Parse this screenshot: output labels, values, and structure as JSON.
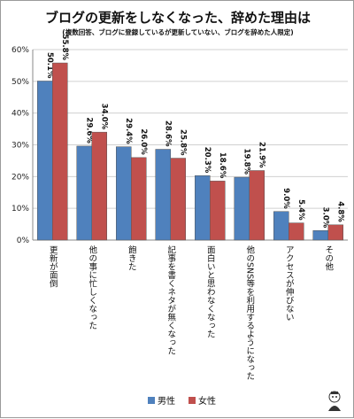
{
  "chart_data": {
    "type": "bar",
    "title": "ブログの更新をしなくなった、辞めた理由は",
    "subtitle": "(複数回答、ブログに登録しているが更新していない、ブログを辞めた人限定)",
    "categories": [
      "更新が面倒",
      "他の事に忙しくなった",
      "飽きた",
      "記事を書くネタが無くなった",
      "面白いと思わなくなった",
      "他のSNS等を利用するようになった",
      "アクセスが伸びない",
      "その他"
    ],
    "series": [
      {
        "name": "男性",
        "color": "#4f81bd",
        "values": [
          50.1,
          29.6,
          29.4,
          28.6,
          20.3,
          19.8,
          9.0,
          3.0
        ]
      },
      {
        "name": "女性",
        "color": "#c0504d",
        "values": [
          55.8,
          34.0,
          26.0,
          25.8,
          18.6,
          21.9,
          5.4,
          4.8
        ]
      }
    ],
    "value_labels": [
      [
        "50.1%",
        "29.6%",
        "29.4%",
        "28.6%",
        "20.3%",
        "19.8%",
        "9.0%",
        "3.0%"
      ],
      [
        "55.8%",
        "34.0%",
        "26.0%",
        "25.8%",
        "18.6%",
        "21.9%",
        "5.4%",
        "4.8%"
      ]
    ],
    "ylim": [
      0,
      60
    ],
    "yticks": [
      "0%",
      "10%",
      "20%",
      "30%",
      "40%",
      "50%",
      "60%"
    ],
    "grid": true,
    "legend": "bottom"
  }
}
